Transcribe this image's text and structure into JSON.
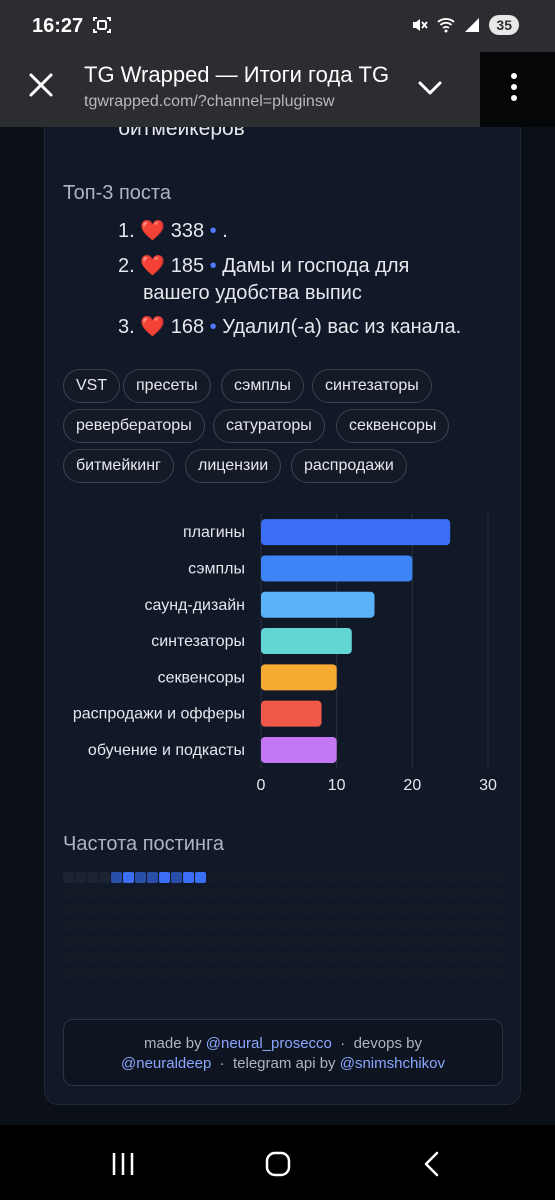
{
  "status_bar": {
    "time": "16:27",
    "battery": "35"
  },
  "toolbar": {
    "title": "TG Wrapped — Итоги года TG",
    "url": "tgwrapped.com/?channel=pluginsw"
  },
  "page": {
    "cut_text": "битмейкеров",
    "top_posts": {
      "heading": "Топ-3 поста",
      "items": [
        {
          "num": "1.",
          "likes": "338",
          "text": "."
        },
        {
          "num": "2.",
          "likes": "185",
          "text": "Дамы и господа для",
          "text_cont": "вашего удобства выпис"
        },
        {
          "num": "3.",
          "likes": "168",
          "text": "Удалил(-а) вас из канала."
        }
      ]
    },
    "tags": [
      "VST",
      "пресеты",
      "сэмплы",
      "синтезаторы",
      "ревербераторы",
      "сатураторы",
      "секвенсоры",
      "битмейкинг",
      "лицензии",
      "распродажи"
    ],
    "posting_frequency": {
      "heading": "Частота постинга",
      "active_cells": [
        {
          "index": 0,
          "level": 1
        },
        {
          "index": 1,
          "level": 1
        },
        {
          "index": 2,
          "level": 1
        },
        {
          "index": 3,
          "level": 1
        },
        {
          "index": 4,
          "level": 2
        },
        {
          "index": 5,
          "level": 3
        },
        {
          "index": 6,
          "level": 2
        },
        {
          "index": 7,
          "level": 2
        },
        {
          "index": 8,
          "level": 3
        },
        {
          "index": 9,
          "level": 2
        },
        {
          "index": 10,
          "level": 3
        },
        {
          "index": 11,
          "level": 3
        }
      ]
    },
    "footer": {
      "made_by": "made by",
      "made_by_handle": "@neural_prosecco",
      "sep": "·",
      "devops_by": "devops by",
      "devops_handle": "@neuraldeep",
      "api_by": "telegram api by",
      "api_handle": "@snimshchikov"
    }
  },
  "chart_data": {
    "type": "bar",
    "orientation": "horizontal",
    "categories": [
      "плагины",
      "сэмплы",
      "саунд-дизайн",
      "синтезаторы",
      "секвенсоры",
      "распродажи и офферы",
      "обучение и подкасты"
    ],
    "values": [
      25,
      20,
      15,
      12,
      10,
      8,
      10
    ],
    "colors": [
      "#3b6ff5",
      "#3f84f7",
      "#5ab3f8",
      "#62d6d3",
      "#f7ab33",
      "#f0584a",
      "#c477f2"
    ],
    "xlim": [
      0,
      30
    ],
    "xticks": [
      0,
      10,
      20,
      30
    ],
    "grid": true
  },
  "colors": {
    "background": "#0b0f17",
    "card": "#111827",
    "accent": "#4f7cff",
    "heart": "#e0304e"
  }
}
